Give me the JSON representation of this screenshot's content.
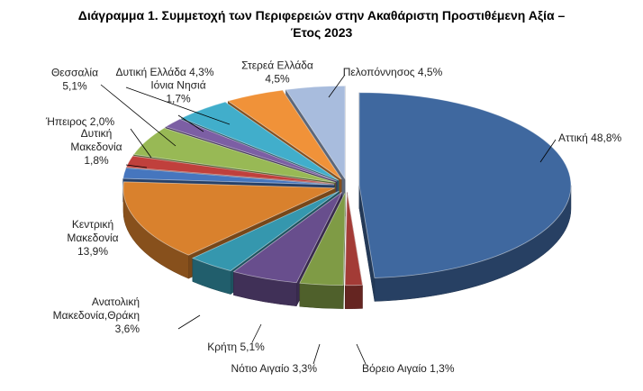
{
  "chart_data": {
    "type": "pie",
    "title_line1": "Διάγραμμα 1. Συμμετοχή των Περιφερειών στην Ακαθάριστη Προστιθέμενη Αξία –",
    "title_line2": "Έτος 2023",
    "unit": "%",
    "slices": [
      {
        "name": "Αττική",
        "value": 48.8,
        "label": [
          "Αττική 48,8%"
        ],
        "color": "#3F689F"
      },
      {
        "name": "Βόρειο Αιγαίο",
        "value": 1.3,
        "label": [
          "Βόρειο Αιγαίο 1,3%"
        ],
        "color": "#A33B36"
      },
      {
        "name": "Νότιο Αιγαίο",
        "value": 3.3,
        "label": [
          "Νότιο Αιγαίο 3,3%"
        ],
        "color": "#7F9B45"
      },
      {
        "name": "Κρήτη",
        "value": 5.1,
        "label": [
          "Κρήτη 5,1%"
        ],
        "color": "#684E8D"
      },
      {
        "name": "Ανατολική Μακεδονία,Θράκη",
        "value": 3.6,
        "label": [
          "Ανατολική",
          "Μακεδονία,Θράκη",
          "3,6%"
        ],
        "color": "#3597AE"
      },
      {
        "name": "Κεντρική Μακεδονία",
        "value": 13.9,
        "label": [
          "Κεντρική",
          "Μακεδονία",
          "13,9%"
        ],
        "color": "#D9812D"
      },
      {
        "name": "Δυτική Μακεδονία",
        "value": 1.8,
        "label": [
          "Δυτική",
          "Μακεδονία",
          "1,8%"
        ],
        "color": "#4676BE"
      },
      {
        "name": "Ήπειρος",
        "value": 2.0,
        "label": [
          "Ήπειρος 2,0%"
        ],
        "color": "#C0403C"
      },
      {
        "name": "Θεσσαλία",
        "value": 5.1,
        "label": [
          "Θεσσαλία",
          "5,1%"
        ],
        "color": "#98B955"
      },
      {
        "name": "Ιόνια Νησιά",
        "value": 1.7,
        "label": [
          "Ιόνια Νησιά",
          "1,7%"
        ],
        "color": "#7C5FA4"
      },
      {
        "name": "Δυτική Ελλάδα",
        "value": 4.3,
        "label": [
          "Δυτική Ελλάδα 4,3%"
        ],
        "color": "#41AECB"
      },
      {
        "name": "Στερεά Ελλάδα",
        "value": 4.5,
        "label": [
          "Στερεά Ελλάδα",
          "4,5%"
        ],
        "color": "#F09239"
      },
      {
        "name": "Πελοπόννησος",
        "value": 4.5,
        "label": [
          "Πελοπόννησος 4,5%"
        ],
        "color": "#A8BCDD"
      }
    ]
  }
}
